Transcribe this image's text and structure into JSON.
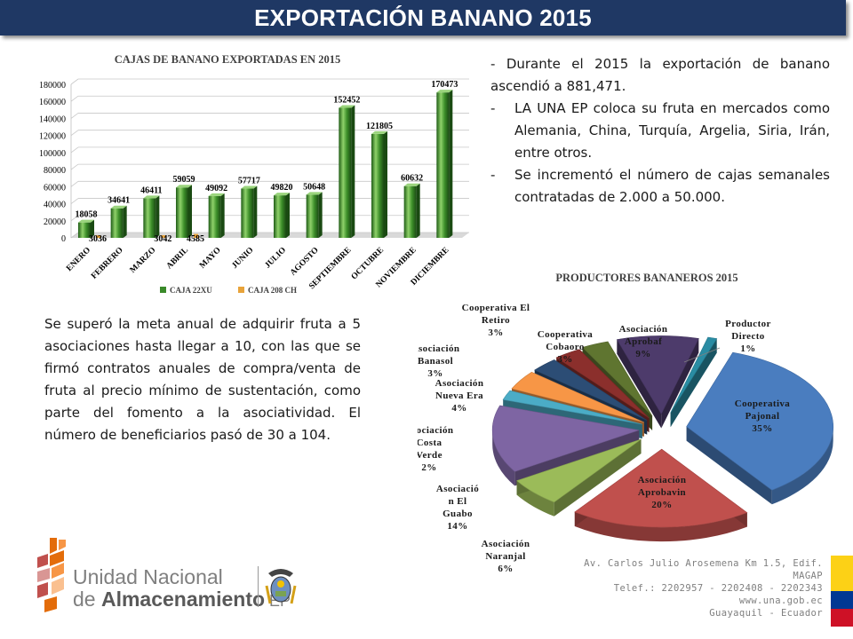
{
  "slide": {
    "title": "EXPORTACIÓN BANANO 2015",
    "bullet_intro": "- Durante el 2015 la exportación de banano ascendió a 881,471.",
    "bullets": [
      "LA UNA EP coloca su fruta en mercados como Alemania, China, Turquía, Argelia, Siria, Irán, entre otros.",
      "Se incrementó el número de cajas semanales contratadas de 2.000 a 50.000."
    ],
    "bullet_marker": "-",
    "paragraph": "Se superó la meta anual de adquirir fruta a 5 asociaciones hasta llegar a 10, con las que se firmó contratos anuales de compra/venta de fruta al precio mínimo de sustentación, como parte del fomento a la asociatividad. El número de beneficiarios pasó de 30 a 104."
  },
  "footer": {
    "org_line1": "Unidad Nacional",
    "org_line2_prefix": "de ",
    "org_line2_bold": "Almacenamiento",
    "org_line2_suffix": " EP",
    "address": [
      "Av. Carlos Julio Arosemena Km 1.5, Edif. MAGAP",
      "Telef.: 2202957 - 2202408 - 2202343",
      "www.una.gob.ec",
      "Guayaquil - Ecuador"
    ],
    "flag_colors": [
      "#fcd116",
      "#003893",
      "#ce1126"
    ]
  },
  "chart_data": [
    {
      "type": "bar",
      "title": "CAJAS DE BANANO EXPORTADAS EN 2015",
      "categories": [
        "ENERO",
        "FEBRERO",
        "MARZO",
        "ABRIL",
        "MAYO",
        "JUNIO",
        "JULIO",
        "AGOSTO",
        "SEPTIEMBRE",
        "OCTUBRE",
        "NOVIEMBRE",
        "DICIEMBRE"
      ],
      "series": [
        {
          "name": "CAJA 22XU",
          "values": [
            18058,
            34641,
            46411,
            59059,
            49092,
            57717,
            49820,
            50648,
            152452,
            121805,
            60632,
            170473
          ],
          "color": "#3a8a2a"
        },
        {
          "name": "CAJA 208 CH",
          "values": [
            3036,
            null,
            3042,
            4585,
            null,
            null,
            null,
            null,
            null,
            null,
            null,
            null
          ],
          "color": "#e8a33a"
        }
      ],
      "ylim": [
        0,
        180000
      ],
      "yticks": [
        0,
        20000,
        40000,
        60000,
        80000,
        100000,
        120000,
        140000,
        160000,
        180000
      ],
      "legend": "bottom",
      "grid": true
    },
    {
      "type": "pie",
      "title": "PRODUCTORES BANANEROS 2015",
      "slices": [
        {
          "label": "Cooperativa Pajonal",
          "value": 35,
          "text": "35%",
          "color": "#4a7dbf"
        },
        {
          "label": "Asociación Aprobavin",
          "value": 20,
          "text": "20%",
          "color": "#c0504d"
        },
        {
          "label": "Asociación Naranjal",
          "value": 6,
          "text": "6%",
          "color": "#9bbb59"
        },
        {
          "label": "Asociación El Guabo",
          "value": 14,
          "text": "14%",
          "color": "#7e65a3"
        },
        {
          "label": "Asociación Costa Verde",
          "value": 2,
          "text": "2%",
          "color": "#4bacc6"
        },
        {
          "label": "Asociación Nueva Era",
          "value": 4,
          "text": "4%",
          "color": "#f79646"
        },
        {
          "label": "Asociación Banasol",
          "value": 3,
          "text": "3%",
          "color": "#2c4d75"
        },
        {
          "label": "Cooperativa El Retiro",
          "value": 3,
          "text": "3%",
          "color": "#8b2f2c"
        },
        {
          "label": "Cooperativa Cobaoro",
          "value": 3,
          "text": "3%",
          "color": "#5f7530"
        },
        {
          "label": "Asociación Aprobaf",
          "value": 9,
          "text": "9%",
          "color": "#4d3b6b"
        },
        {
          "label": "Productor Directo",
          "value": 1,
          "text": "1%",
          "color": "#2a8ca3"
        }
      ],
      "label_lines": {
        "Cooperativa Pajonal": [
          "Cooperativa",
          "Pajonal",
          "35%"
        ],
        "Asociación Aprobavin": [
          "Asociación",
          "Aprobavin",
          "20%"
        ],
        "Asociación Naranjal": [
          "Asociación",
          "Naranjal",
          "6%"
        ],
        "Asociación El Guabo": [
          "Asociació",
          "n El",
          "Guabo",
          "14%"
        ],
        "Asociación Costa Verde": [
          "Asociación",
          "Costa",
          "Verde",
          "2%"
        ],
        "Asociación Nueva Era": [
          "Asociación",
          "Nueva Era",
          "4%"
        ],
        "Asociación Banasol": [
          "Asociación",
          "Banasol",
          "3%"
        ],
        "Cooperativa El Retiro": [
          "Cooperativa El",
          "Retiro",
          "3%"
        ],
        "Cooperativa Cobaoro": [
          "Cooperativa",
          "Cobaoro",
          "3%"
        ],
        "Asociación Aprobaf": [
          "Asociación",
          "Aprobaf",
          "9%"
        ],
        "Productor Directo": [
          "Productor",
          "Directo",
          "1%"
        ]
      }
    }
  ]
}
